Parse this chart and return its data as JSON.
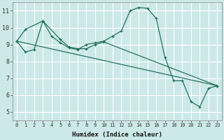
{
  "bg_color": "#cce8e8",
  "grid_color": "#ffffff",
  "line_color": "#1a6b5a",
  "xlabel": "Humidex (Indice chaleur)",
  "xlim": [
    -0.5,
    23.5
  ],
  "ylim": [
    4.5,
    11.5
  ],
  "xticks": [
    0,
    1,
    2,
    3,
    4,
    5,
    6,
    7,
    8,
    9,
    10,
    11,
    12,
    13,
    14,
    15,
    16,
    17,
    18,
    19,
    20,
    21,
    22,
    23
  ],
  "yticks": [
    5,
    6,
    7,
    8,
    9,
    10,
    11
  ],
  "series1_x": [
    0,
    1,
    2,
    3,
    4,
    5,
    6,
    7,
    8,
    9,
    10,
    11,
    12,
    13,
    14,
    15,
    16,
    17,
    18,
    19,
    20,
    21,
    22,
    23
  ],
  "series1_y": [
    9.2,
    8.55,
    8.7,
    10.4,
    9.5,
    9.1,
    8.8,
    8.7,
    9.0,
    9.1,
    9.2,
    9.5,
    9.8,
    11.0,
    11.2,
    11.15,
    10.55,
    8.25,
    6.85,
    6.85,
    5.6,
    5.3,
    6.4,
    6.55
  ],
  "series2_x": [
    0,
    1,
    3,
    5,
    6,
    7,
    8,
    9,
    10,
    23
  ],
  "series2_y": [
    9.2,
    9.9,
    10.4,
    9.3,
    8.85,
    8.75,
    8.75,
    9.0,
    9.15,
    6.55
  ],
  "series3_x": [
    0,
    23
  ],
  "series3_y": [
    9.2,
    6.55
  ]
}
